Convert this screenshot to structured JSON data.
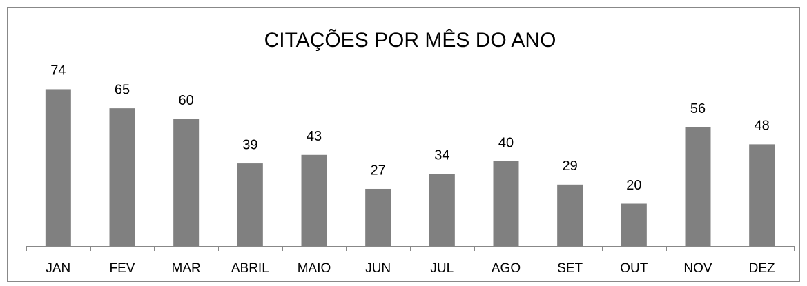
{
  "chart_data": {
    "type": "bar",
    "title": "CITAÇÕES POR MÊS DO ANO",
    "categories": [
      "JAN",
      "FEV",
      "MAR",
      "ABRIL",
      "MAIO",
      "JUN",
      "JUL",
      "AGO",
      "SET",
      "OUT",
      "NOV",
      "DEZ"
    ],
    "values": [
      74,
      65,
      60,
      39,
      43,
      27,
      34,
      40,
      29,
      20,
      56,
      48
    ],
    "color": "#808080",
    "ylim": [
      0,
      80
    ],
    "grid": false
  }
}
